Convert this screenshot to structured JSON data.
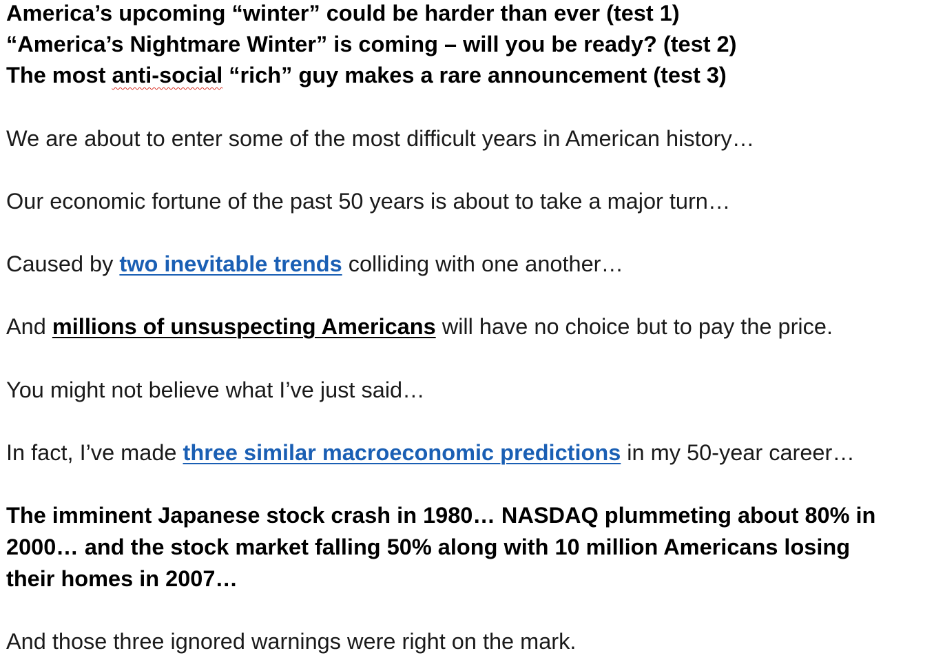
{
  "headlines": {
    "line1": "America’s upcoming “winter” could be harder than ever (test 1)",
    "line2": "“America’s Nightmare Winter” is coming – will you be ready? (test 2)",
    "line3_prefix": "The most ",
    "line3_misspelled": "anti-social",
    "line3_suffix": " “rich” guy makes a rare announcement (test 3)"
  },
  "body": {
    "p1": "We are about to enter some of the most difficult years in American history…",
    "p2": "Our economic fortune of the past 50 years is about to take a major turn…",
    "p3_prefix": "Caused by ",
    "p3_link": "two inevitable trends",
    "p3_suffix": " colliding with one another…",
    "p4_prefix": "And ",
    "p4_emphasis": "millions of unsuspecting Americans",
    "p4_suffix": " will have no choice but to pay the price.",
    "p5": "You might not believe what I’ve just said…",
    "p6_prefix": "In fact, I’ve made ",
    "p6_link": "three similar macroeconomic predictions",
    "p6_suffix": " in my 50-year career…",
    "p7_line1": "The imminent Japanese stock crash in 1980… NASDAQ plummeting about 80% in",
    "p7_line2": "2000… and the stock market falling 50% along with 10 million Americans losing",
    "p7_line3": "their homes in 2007…",
    "p8": "And those three ignored warnings were right on the mark."
  },
  "colors": {
    "link": "#1a5fb4",
    "text": "#1a1a1a",
    "spellcheck": "#d93025"
  }
}
